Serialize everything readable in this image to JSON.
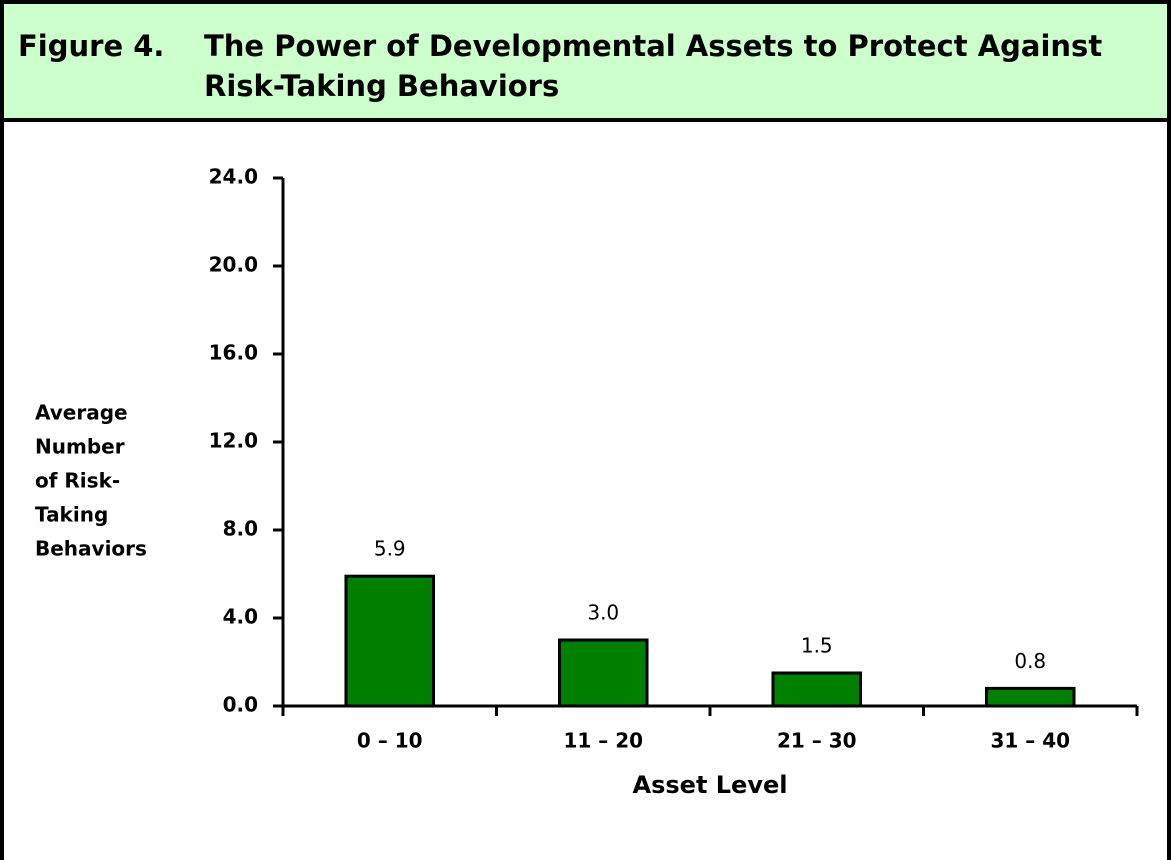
{
  "chart_data": {
    "type": "bar",
    "figure_label": "Figure 4.",
    "title": "The Power of Developmental Assets to Protect Against Risk-Taking Behaviors",
    "ylabel_lines": [
      "Average",
      "Number",
      "of Risk-",
      "Taking",
      "Behaviors"
    ],
    "xlabel": "Asset Level",
    "categories": [
      "0 – 10",
      "11 – 20",
      "21 – 30",
      "31 – 40"
    ],
    "values": [
      5.9,
      3.0,
      1.5,
      0.8
    ],
    "value_labels": [
      "5.9",
      "3.0",
      "1.5",
      "0.8"
    ],
    "color": "#008000",
    "ylim": [
      0,
      24
    ],
    "yticks": [
      {
        "value": 0,
        "label": "0.0"
      },
      {
        "value": 4,
        "label": "4.0"
      },
      {
        "value": 8,
        "label": "8.0"
      },
      {
        "value": 12,
        "label": "12.0"
      },
      {
        "value": 16,
        "label": "16.0"
      },
      {
        "value": 20,
        "label": "20.0"
      },
      {
        "value": 24,
        "label": "24.0"
      }
    ],
    "grid": false
  }
}
